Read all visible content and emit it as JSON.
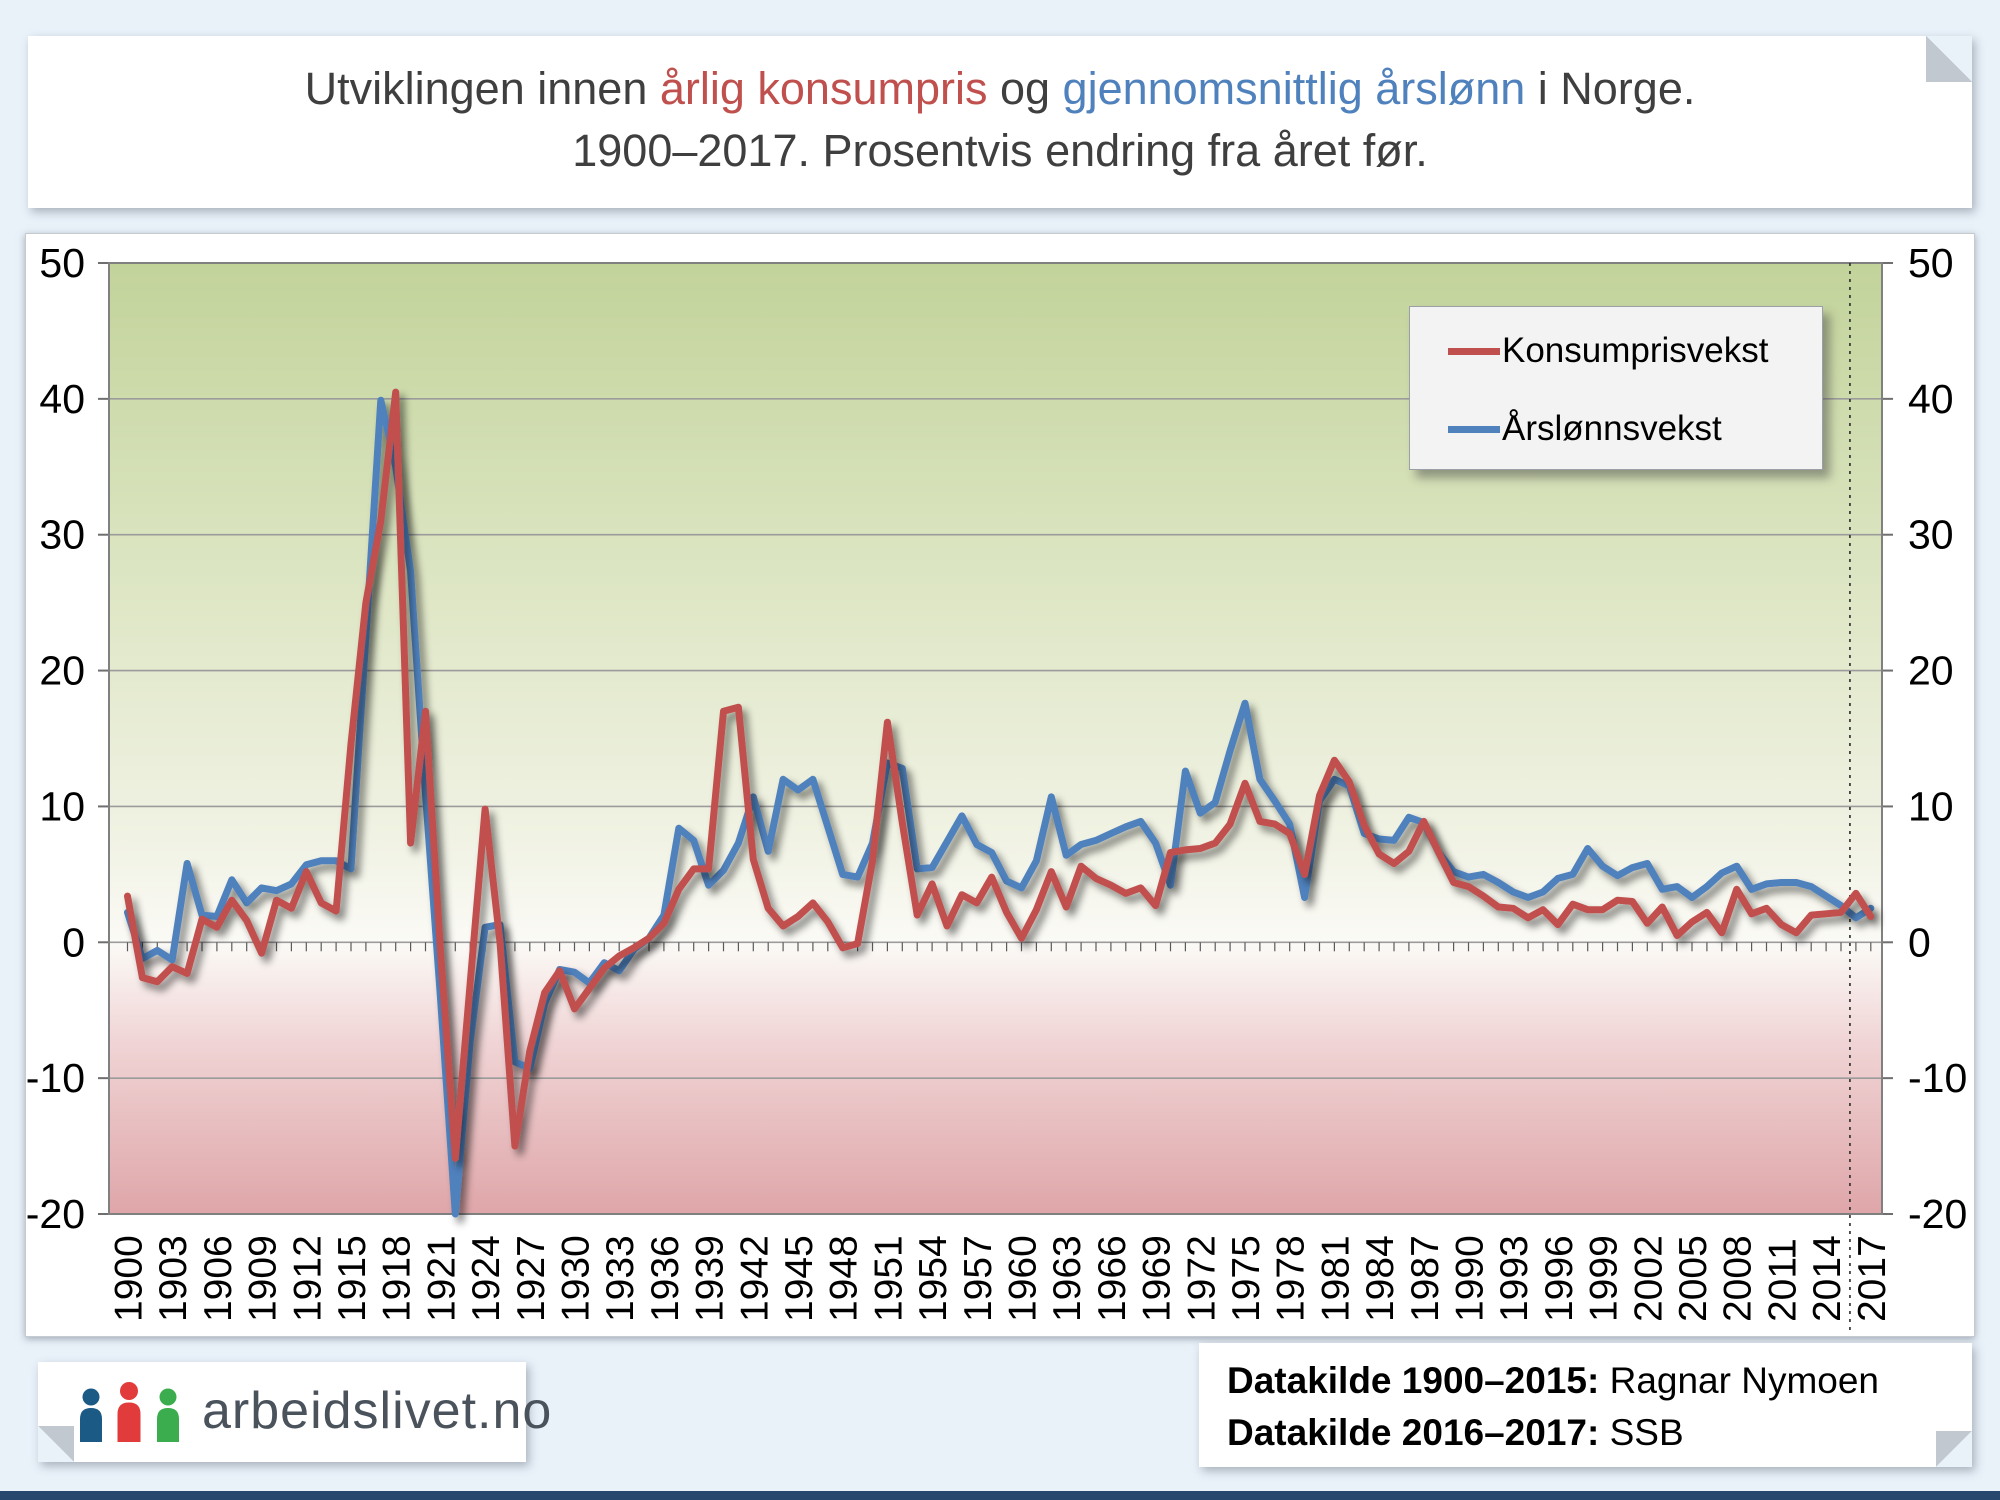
{
  "title": {
    "prefix": "Utviklingen innen ",
    "highlight_red": "årlig konsumpris",
    "middle": " og ",
    "highlight_blue": "gjennomsnittlig årslønn",
    "suffix": " i Norge.",
    "line2": "1900–2017. Prosentvis endring fra året før."
  },
  "colors": {
    "red": "#C0504D",
    "blue": "#4F81BD",
    "grid": "#9b9b9b",
    "plot_border": "#808080",
    "page_bg": "#e9f1f9",
    "bottom_bar": "#27476e"
  },
  "chart_data": {
    "type": "line",
    "title": "Utviklingen innen årlig konsumpris og gjennomsnittlig årslønn i Norge. 1900–2017. Prosentvis endring fra året før.",
    "xlabel": "",
    "ylabel": "",
    "ylim": [
      -20,
      50
    ],
    "y_ticks": [
      50,
      40,
      30,
      20,
      10,
      0,
      -10,
      -20
    ],
    "x_start_year": 1900,
    "x_end_year": 2017,
    "x_tick_labels": [
      "1900",
      "1903",
      "1906",
      "1909",
      "1912",
      "1915",
      "1918",
      "1921",
      "1924",
      "1927",
      "1930",
      "1933",
      "1936",
      "1939",
      "1942",
      "1945",
      "1948",
      "1951",
      "1954",
      "1957",
      "1960",
      "1963",
      "1966",
      "1969",
      "1972",
      "1975",
      "1978",
      "1981",
      "1984",
      "1987",
      "1990",
      "1993",
      "1996",
      "1999",
      "2002",
      "2005",
      "2008",
      "2011",
      "2014",
      "2017"
    ],
    "grid": true,
    "legend_position": "top-right",
    "divider_line_year": 2015.6,
    "series": [
      {
        "name": "Konsumprisvekst",
        "color": "#C0504D",
        "values": [
          3.4,
          -2.6,
          -2.9,
          -1.8,
          -2.3,
          1.7,
          1.1,
          3.1,
          1.6,
          -0.8,
          3.1,
          2.5,
          5.2,
          2.9,
          2.3,
          14.6,
          25,
          31,
          40.5,
          7.3,
          17,
          -0.5,
          -15.9,
          -3,
          9.8,
          0,
          -15,
          -8,
          -3.7,
          -2.1,
          -4.9,
          -3.4,
          -1.9,
          -1,
          -0.4,
          0.3,
          1.4,
          3.9,
          5.4,
          5.4,
          17,
          17.3,
          6.1,
          2.5,
          1.2,
          1.9,
          2.9,
          1.5,
          -0.4,
          -0.1,
          6,
          16.2,
          8.8,
          2,
          4.3,
          1.2,
          3.5,
          2.9,
          4.8,
          2.2,
          0.3,
          2.4,
          5.2,
          2.6,
          5.6,
          4.7,
          4.2,
          3.6,
          4,
          2.7,
          6.6,
          6.8,
          6.9,
          7.3,
          8.7,
          11.7,
          8.9,
          8.7,
          8,
          5,
          10.8,
          13.4,
          11.8,
          8.6,
          6.5,
          5.8,
          6.7,
          8.9,
          6.6,
          4.4,
          4.1,
          3.4,
          2.6,
          2.5,
          1.8,
          2.4,
          1.3,
          2.8,
          2.4,
          2.4,
          3.1,
          3,
          1.4,
          2.6,
          0.5,
          1.5,
          2.2,
          0.7,
          3.9,
          2.1,
          2.5,
          1.3,
          0.7,
          2,
          2.1,
          2.2,
          3.6,
          1.9
        ]
      },
      {
        "name": "Årslønnsvekst",
        "color": "#4F81BD",
        "values": [
          2.2,
          -1.2,
          -0.6,
          -1.3,
          5.8,
          2,
          1.9,
          4.6,
          2.9,
          4,
          3.8,
          4.3,
          5.7,
          6,
          6,
          5.4,
          22.5,
          39.9,
          35,
          27.3,
          10.9,
          -4,
          -20,
          -7.3,
          1.1,
          1.3,
          -8.8,
          -9.3,
          -4.5,
          -2,
          -2.2,
          -3,
          -1.5,
          -2.1,
          -0.5,
          0.3,
          2,
          8.4,
          7.5,
          4.2,
          5.3,
          7.3,
          10.7,
          6.7,
          12,
          11.2,
          12,
          8.5,
          5,
          4.8,
          7.3,
          13.2,
          12.8,
          5.4,
          5.5,
          7.4,
          9.3,
          7.2,
          6.6,
          4.5,
          4,
          6,
          10.7,
          6.4,
          7.2,
          7.5,
          8,
          8.5,
          8.9,
          7.3,
          4.2,
          12.6,
          9.5,
          10.3,
          14.1,
          17.6,
          12,
          10.4,
          8.7,
          3.3,
          10.4,
          12,
          11.5,
          8,
          7.6,
          7.5,
          9.2,
          8.8,
          6.6,
          5.2,
          4.8,
          5,
          4.4,
          3.7,
          3.3,
          3.7,
          4.7,
          5,
          6.9,
          5.6,
          4.9,
          5.5,
          5.8,
          3.9,
          4.1,
          3.3,
          4.1,
          5.1,
          5.6,
          3.9,
          4.3,
          4.4,
          4.4,
          4.1,
          3.4,
          2.7,
          1.8,
          2.5
        ]
      }
    ]
  },
  "source_box": {
    "lines": [
      {
        "label": "Datakilde 1900–2015:",
        "value": "Ragnar Nymoen"
      },
      {
        "label": "Datakilde 2016–2017:",
        "value": "SSB"
      }
    ]
  },
  "logo": {
    "text": "arbeidslivet.no",
    "icon_colors": [
      "#1c5a86",
      "#e23b3b",
      "#3cad4e"
    ],
    "text_color": "#4a525c"
  }
}
